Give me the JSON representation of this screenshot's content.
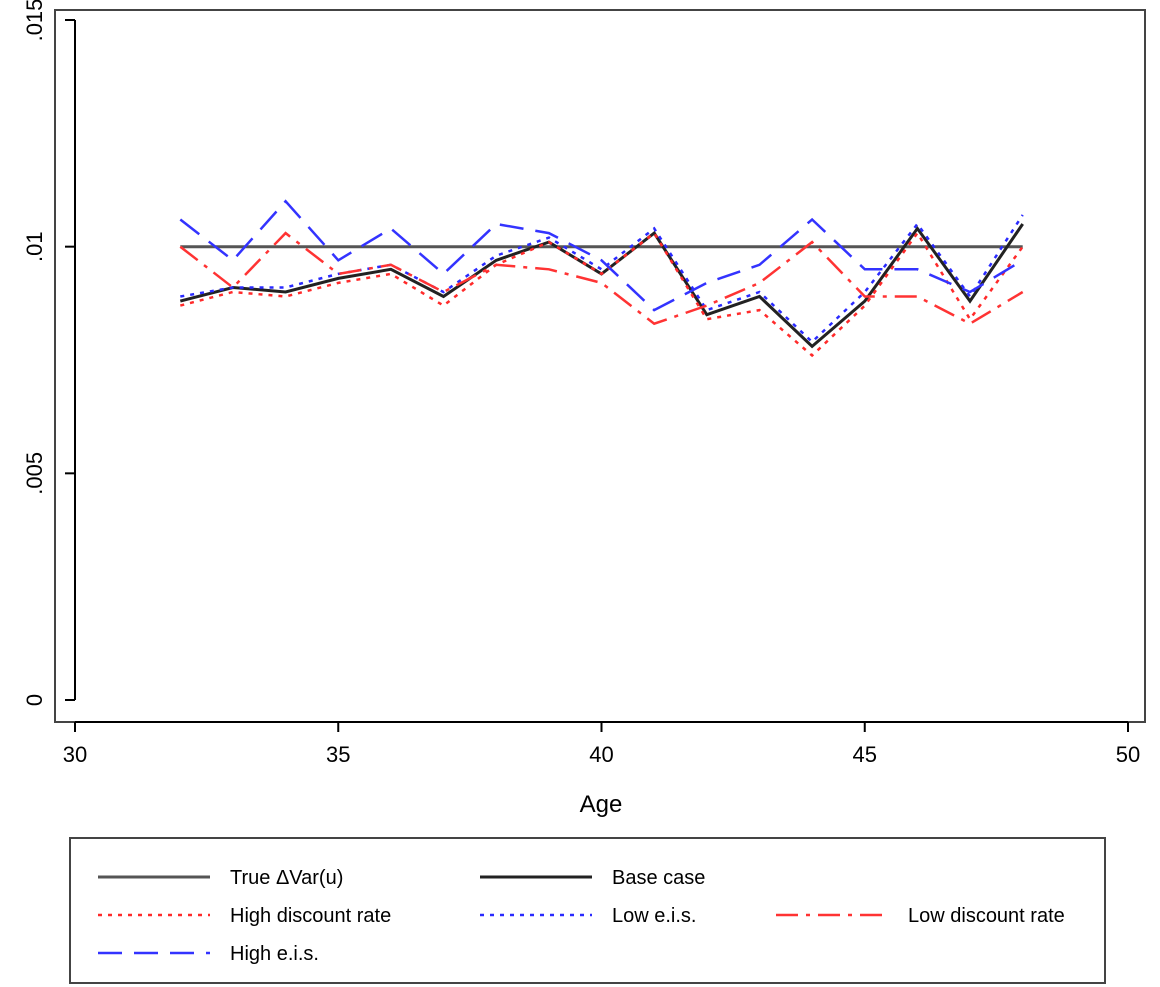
{
  "chart_data": {
    "type": "line",
    "title": "",
    "xlabel": "Age",
    "ylabel": "",
    "xlim": [
      30,
      50
    ],
    "ylim": [
      0,
      0.015
    ],
    "xticks": [
      30,
      35,
      40,
      45,
      50
    ],
    "xtick_labels": [
      "30",
      "35",
      "40",
      "45",
      "50"
    ],
    "yticks": [
      0,
      0.005,
      0.01,
      0.015
    ],
    "ytick_labels": [
      "0",
      ".005",
      ".01",
      ".015"
    ],
    "grid": false,
    "legend_position": "bottom",
    "x": [
      32,
      33,
      34,
      35,
      36,
      37,
      38,
      39,
      40,
      41,
      42,
      43,
      44,
      45,
      46,
      47,
      48
    ],
    "series": [
      {
        "name": "True ΔVar(u)",
        "color": "#555555",
        "dash": "solid",
        "values": [
          0.01,
          0.01,
          0.01,
          0.01,
          0.01,
          0.01,
          0.01,
          0.01,
          0.01,
          0.01,
          0.01,
          0.01,
          0.01,
          0.01,
          0.01,
          0.01,
          0.01
        ]
      },
      {
        "name": "Base case",
        "color": "#222222",
        "dash": "solid",
        "values": [
          0.0088,
          0.0091,
          0.009,
          0.0093,
          0.0095,
          0.0089,
          0.0097,
          0.0101,
          0.0094,
          0.0103,
          0.0085,
          0.0089,
          0.0078,
          0.0088,
          0.0104,
          0.0088,
          0.0105
        ]
      },
      {
        "name": "High discount rate",
        "color": "#ff2a2a",
        "dash": "dot",
        "values": [
          0.0087,
          0.009,
          0.0089,
          0.0092,
          0.0094,
          0.0087,
          0.0096,
          0.0101,
          0.0094,
          0.0103,
          0.0084,
          0.0086,
          0.0076,
          0.0087,
          0.0103,
          0.0084,
          0.01
        ]
      },
      {
        "name": "Low e.i.s.",
        "color": "#2a2aff",
        "dash": "dot",
        "values": [
          0.0089,
          0.0091,
          0.0091,
          0.0094,
          0.0096,
          0.009,
          0.0098,
          0.0102,
          0.0095,
          0.0104,
          0.0086,
          0.009,
          0.0079,
          0.009,
          0.0105,
          0.0089,
          0.0107
        ]
      },
      {
        "name": "Low discount rate",
        "color": "#ff3333",
        "dash": "dashdot",
        "values": [
          0.01,
          0.0091,
          0.0103,
          0.0094,
          0.0096,
          0.009,
          0.0096,
          0.0095,
          0.0092,
          0.0083,
          0.0087,
          0.0092,
          0.0101,
          0.0089,
          0.0089,
          0.0083,
          0.009
        ]
      },
      {
        "name": "High e.i.s.",
        "color": "#3333ff",
        "dash": "longdash",
        "values": [
          0.0106,
          0.0097,
          0.011,
          0.0097,
          0.0104,
          0.0094,
          0.0105,
          0.0103,
          0.0097,
          0.0086,
          0.0092,
          0.0096,
          0.0106,
          0.0095,
          0.0095,
          0.009,
          0.0097
        ]
      }
    ]
  }
}
